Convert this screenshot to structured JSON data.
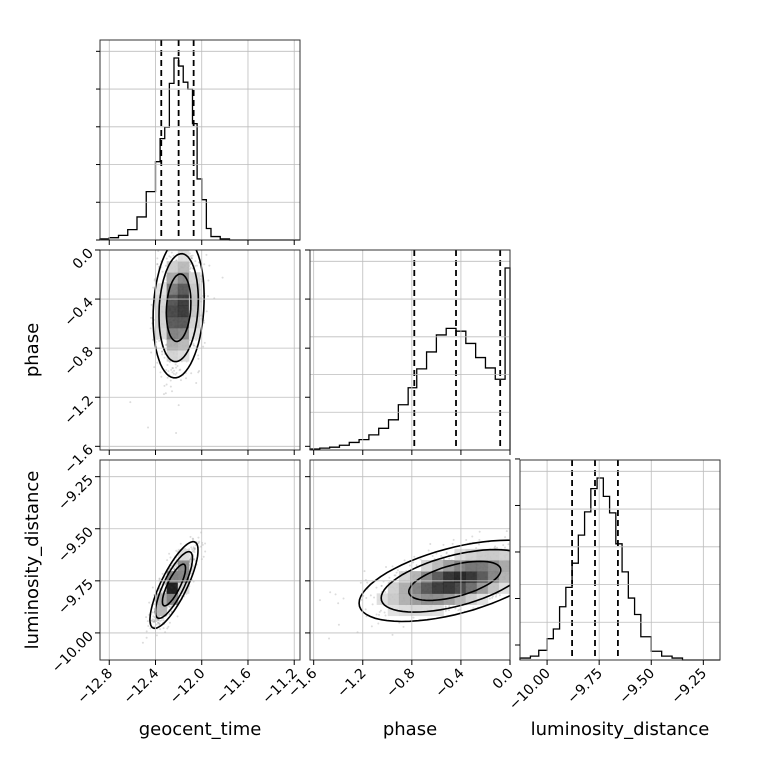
{
  "chart_data": {
    "type": "corner",
    "parameters": [
      "geocent_time",
      "phase",
      "luminosity_distance"
    ],
    "ranges": {
      "geocent_time": [
        -12.88,
        -11.15
      ],
      "phase": [
        -1.63,
        0.0
      ],
      "luminosity_distance": [
        -10.13,
        -9.17
      ]
    },
    "ticks": {
      "geocent_time": [
        "−12.8",
        "−12.4",
        "−12.0",
        "−11.6",
        "−11.2"
      ],
      "geocent_time_values": [
        -12.8,
        -12.4,
        -12.0,
        -11.6,
        -11.2
      ],
      "phase": [
        "−1.6",
        "−1.2",
        "−0.8",
        "−0.4",
        "0.0"
      ],
      "phase_values": [
        -1.6,
        -1.2,
        -0.8,
        -0.4,
        0.0
      ],
      "luminosity_distance": [
        "−10.00",
        "−9.75",
        "−9.50",
        "−9.25"
      ],
      "luminosity_distance_values": [
        -10.0,
        -9.75,
        -9.5,
        -9.25
      ]
    },
    "quantiles": {
      "geocent_time": [
        -12.35,
        -12.2,
        -12.07
      ],
      "phase": [
        -0.78,
        -0.44,
        -0.08
      ],
      "luminosity_distance": [
        -9.88,
        -9.77,
        -9.66
      ]
    },
    "marginals": {
      "geocent_time": {
        "edges": [
          -12.88,
          -12.8,
          -12.72,
          -12.64,
          -12.56,
          -12.48,
          -12.4,
          -12.36,
          -12.32,
          -12.28,
          -12.24,
          -12.2,
          -12.16,
          -12.12,
          -12.08,
          -12.04,
          -12.0,
          -11.96,
          -11.92,
          -11.84,
          -11.76,
          -11.15
        ],
        "counts": [
          1,
          2,
          4,
          9,
          20,
          42,
          68,
          88,
          98,
          136,
          158,
          151,
          137,
          131,
          101,
          53,
          35,
          10,
          3,
          1,
          0
        ]
      },
      "phase": {
        "edges": [
          -1.63,
          -1.55,
          -1.47,
          -1.39,
          -1.31,
          -1.23,
          -1.15,
          -1.07,
          -0.99,
          -0.91,
          -0.83,
          -0.76,
          -0.68,
          -0.6,
          -0.52,
          -0.44,
          -0.36,
          -0.28,
          -0.2,
          -0.12,
          -0.04,
          0.0
        ],
        "counts": [
          1,
          2,
          3,
          5,
          8,
          11,
          16,
          23,
          32,
          48,
          66,
          86,
          104,
          122,
          129,
          126,
          113,
          98,
          87,
          75,
          193
        ]
      },
      "luminosity_distance": {
        "edges": [
          -10.13,
          -10.08,
          -10.04,
          -10.0,
          -9.97,
          -9.94,
          -9.91,
          -9.88,
          -9.85,
          -9.82,
          -9.79,
          -9.76,
          -9.73,
          -9.7,
          -9.67,
          -9.64,
          -9.61,
          -9.58,
          -9.55,
          -9.5,
          -9.45,
          -9.4,
          -9.35,
          -9.17
        ],
        "counts": [
          2,
          4,
          10,
          22,
          32,
          55,
          75,
          100,
          129,
          153,
          177,
          188,
          169,
          152,
          120,
          91,
          64,
          47,
          24,
          9,
          4,
          2,
          0
        ]
      }
    },
    "joint": [
      {
        "x": "geocent_time",
        "y": "phase",
        "mean": [
          -12.2,
          -0.47
        ],
        "sd": [
          0.085,
          0.22
        ],
        "rho": 0.15
      },
      {
        "x": "geocent_time",
        "y": "luminosity_distance",
        "mean": [
          -12.24,
          -9.77
        ],
        "sd": [
          0.08,
          0.08
        ],
        "rho": 0.8
      },
      {
        "x": "phase",
        "y": "luminosity_distance",
        "mean": [
          -0.45,
          -9.75
        ],
        "sd": [
          0.3,
          0.075
        ],
        "rho": 0.55
      }
    ]
  }
}
